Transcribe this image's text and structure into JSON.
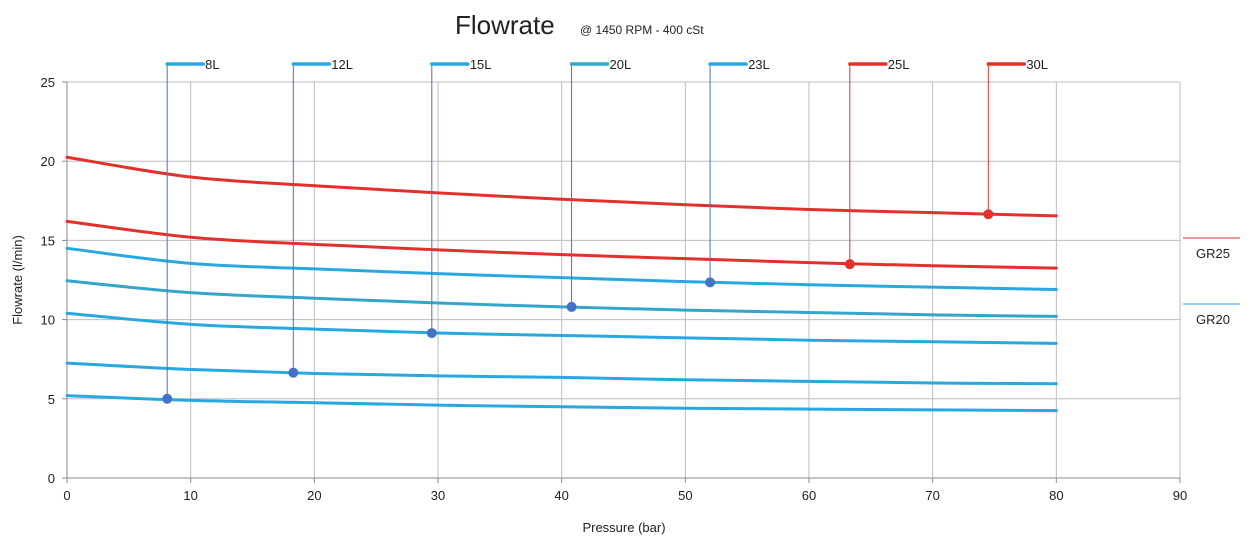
{
  "chart_data": {
    "type": "line",
    "title": "Flowrate",
    "subtitle": "@ 1450 RPM  - 400 cSt",
    "xlabel": "Pressure (bar)",
    "ylabel": "Flowrate (l/min)",
    "xlim": [
      0,
      90
    ],
    "ylim": [
      0,
      25
    ],
    "x_ticks": [
      "0",
      "10",
      "20",
      "30",
      "40",
      "50",
      "60",
      "70",
      "80",
      "90"
    ],
    "y_ticks": [
      "0",
      "5",
      "10",
      "15",
      "20",
      "25"
    ],
    "grid": true,
    "x_major": 10,
    "y_major": 5,
    "series": [
      {
        "name": "8L",
        "group": "GR20",
        "color": "#29a8e0",
        "marker_x": 8.1,
        "marker_y": 5.0,
        "points": [
          [
            0,
            5.2
          ],
          [
            10,
            4.9
          ],
          [
            20,
            4.75
          ],
          [
            30,
            4.6
          ],
          [
            40,
            4.5
          ],
          [
            50,
            4.4
          ],
          [
            60,
            4.35
          ],
          [
            70,
            4.3
          ],
          [
            80,
            4.25
          ]
        ]
      },
      {
        "name": "12L",
        "group": "GR20",
        "color": "#29a8e0",
        "marker_x": 18.3,
        "marker_y": 6.65,
        "points": [
          [
            0,
            7.25
          ],
          [
            10,
            6.85
          ],
          [
            20,
            6.6
          ],
          [
            30,
            6.45
          ],
          [
            40,
            6.35
          ],
          [
            50,
            6.2
          ],
          [
            60,
            6.1
          ],
          [
            70,
            6.0
          ],
          [
            80,
            5.95
          ]
        ]
      },
      {
        "name": "15L",
        "group": "GR20",
        "color": "#29a8e0",
        "marker_x": 29.5,
        "marker_y": 9.15,
        "points": [
          [
            0,
            10.4
          ],
          [
            10,
            9.7
          ],
          [
            20,
            9.4
          ],
          [
            30,
            9.15
          ],
          [
            40,
            9.0
          ],
          [
            50,
            8.85
          ],
          [
            60,
            8.7
          ],
          [
            70,
            8.6
          ],
          [
            80,
            8.5
          ]
        ]
      },
      {
        "name": "20L",
        "group": "GR20",
        "color": "#34a6c9",
        "marker_x": 40.8,
        "marker_y": 10.8,
        "points": [
          [
            0,
            12.45
          ],
          [
            10,
            11.7
          ],
          [
            20,
            11.35
          ],
          [
            30,
            11.05
          ],
          [
            40,
            10.8
          ],
          [
            50,
            10.6
          ],
          [
            60,
            10.45
          ],
          [
            70,
            10.3
          ],
          [
            80,
            10.2
          ]
        ]
      },
      {
        "name": "23L",
        "group": "GR20",
        "color": "#29a8e0",
        "marker_x": 52.0,
        "marker_y": 12.35,
        "points": [
          [
            0,
            14.5
          ],
          [
            10,
            13.55
          ],
          [
            20,
            13.2
          ],
          [
            30,
            12.9
          ],
          [
            40,
            12.65
          ],
          [
            50,
            12.4
          ],
          [
            60,
            12.2
          ],
          [
            70,
            12.05
          ],
          [
            80,
            11.9
          ]
        ]
      },
      {
        "name": "25L",
        "group": "GR25",
        "color": "#e2312d",
        "marker_x": 63.3,
        "marker_y": 13.5,
        "points": [
          [
            0,
            16.2
          ],
          [
            10,
            15.2
          ],
          [
            20,
            14.75
          ],
          [
            30,
            14.4
          ],
          [
            40,
            14.1
          ],
          [
            50,
            13.85
          ],
          [
            60,
            13.6
          ],
          [
            70,
            13.4
          ],
          [
            80,
            13.25
          ]
        ]
      },
      {
        "name": "30L",
        "group": "GR25",
        "color": "#e2312d",
        "marker_x": 74.5,
        "marker_y": 16.65,
        "points": [
          [
            0,
            20.25
          ],
          [
            10,
            19.0
          ],
          [
            20,
            18.45
          ],
          [
            30,
            18.0
          ],
          [
            40,
            17.6
          ],
          [
            50,
            17.25
          ],
          [
            60,
            16.95
          ],
          [
            70,
            16.75
          ],
          [
            80,
            16.55
          ]
        ]
      }
    ],
    "legend": [
      {
        "label": "GR25",
        "color": "#e2312d"
      },
      {
        "label": "GR20",
        "color": "#29a8e0"
      }
    ],
    "legend_position": "right"
  }
}
